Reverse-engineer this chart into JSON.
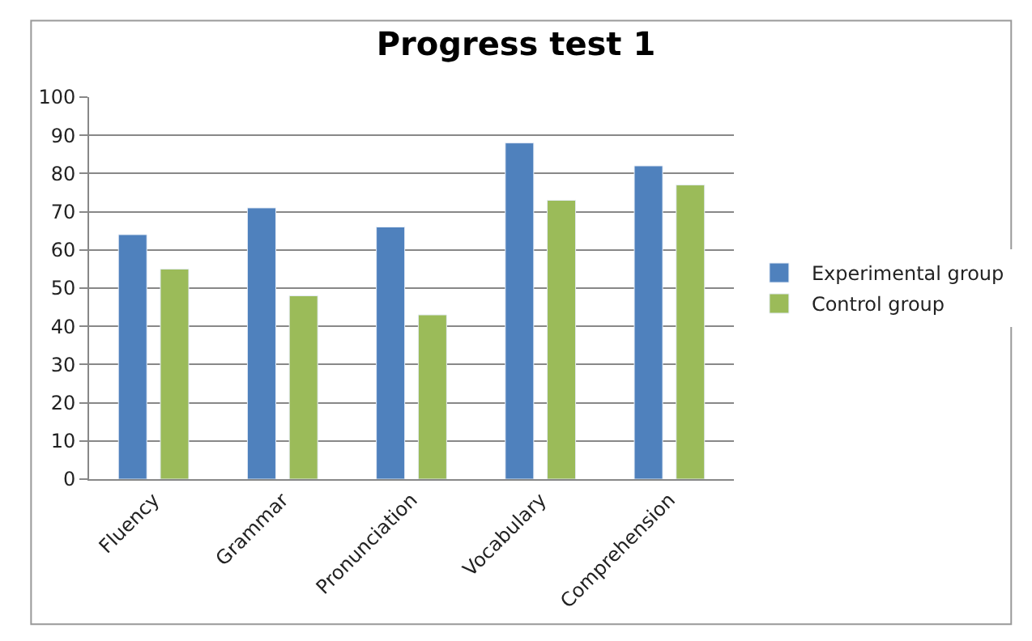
{
  "chart_data": {
    "type": "bar",
    "title": "Progress test 1",
    "categories": [
      "Fluency",
      "Grammar",
      "Pronunciation",
      "Vocabulary",
      "Comprehension"
    ],
    "series": [
      {
        "name": "Experimental group",
        "color": "#4f81bd",
        "values": [
          64,
          71,
          66,
          88,
          82
        ]
      },
      {
        "name": "Control group",
        "color": "#9bbb59",
        "values": [
          55,
          48,
          43,
          73,
          77
        ]
      }
    ],
    "ylim": [
      0,
      100
    ],
    "yticks": [
      0,
      10,
      20,
      30,
      40,
      50,
      60,
      70,
      80,
      90,
      100
    ],
    "grid": "y",
    "legend": "right"
  }
}
